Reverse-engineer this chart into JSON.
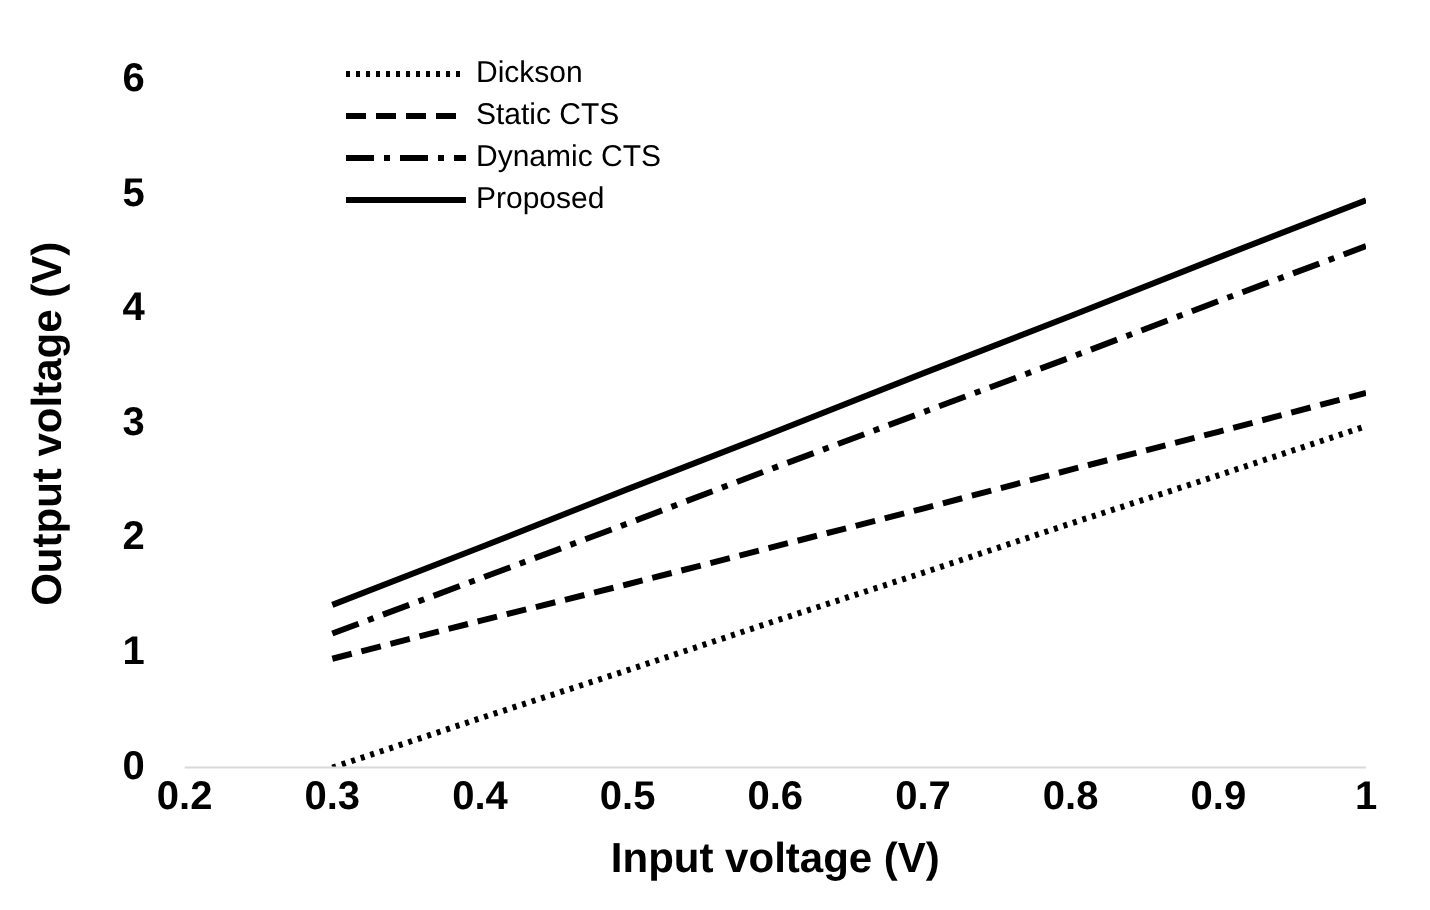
{
  "chart_data": {
    "type": "line",
    "xlabel": "Input voltage (V)",
    "ylabel": "Output voltage (V)",
    "xlim": [
      0.2,
      1
    ],
    "xticks": [
      0.2,
      0.3,
      0.4,
      0.5,
      0.6,
      0.7,
      0.8,
      0.9,
      1
    ],
    "ylim": [
      0,
      6
    ],
    "yticks": [
      0,
      1,
      2,
      3,
      4,
      5,
      6
    ],
    "grid": false,
    "legend": "top left",
    "marker": "none",
    "x": [
      0.3,
      0.4,
      0.5,
      0.6,
      0.7,
      0.8,
      0.9,
      1
    ],
    "series": [
      {
        "name": "Dickson",
        "color": "#000000",
        "line_style": "dotted",
        "values": [
          0,
          0.43,
          0.85,
          1.28,
          1.7,
          2.13,
          2.55,
          2.98
        ]
      },
      {
        "name": "Static CTS",
        "color": "#000000",
        "line_style": "dashed",
        "values": [
          0.95,
          1.28,
          1.6,
          1.93,
          2.26,
          2.6,
          2.93,
          3.27
        ]
      },
      {
        "name": "Dynamic CTS",
        "color": "#000000",
        "line_style": "dashdot",
        "values": [
          1.17,
          1.65,
          2.13,
          2.62,
          3.1,
          3.58,
          4.07,
          4.55
        ]
      },
      {
        "name": "Proposed",
        "color": "#000000",
        "line_style": "solid",
        "values": [
          1.42,
          1.92,
          2.43,
          2.93,
          3.44,
          3.94,
          4.45,
          4.95
        ]
      }
    ]
  }
}
